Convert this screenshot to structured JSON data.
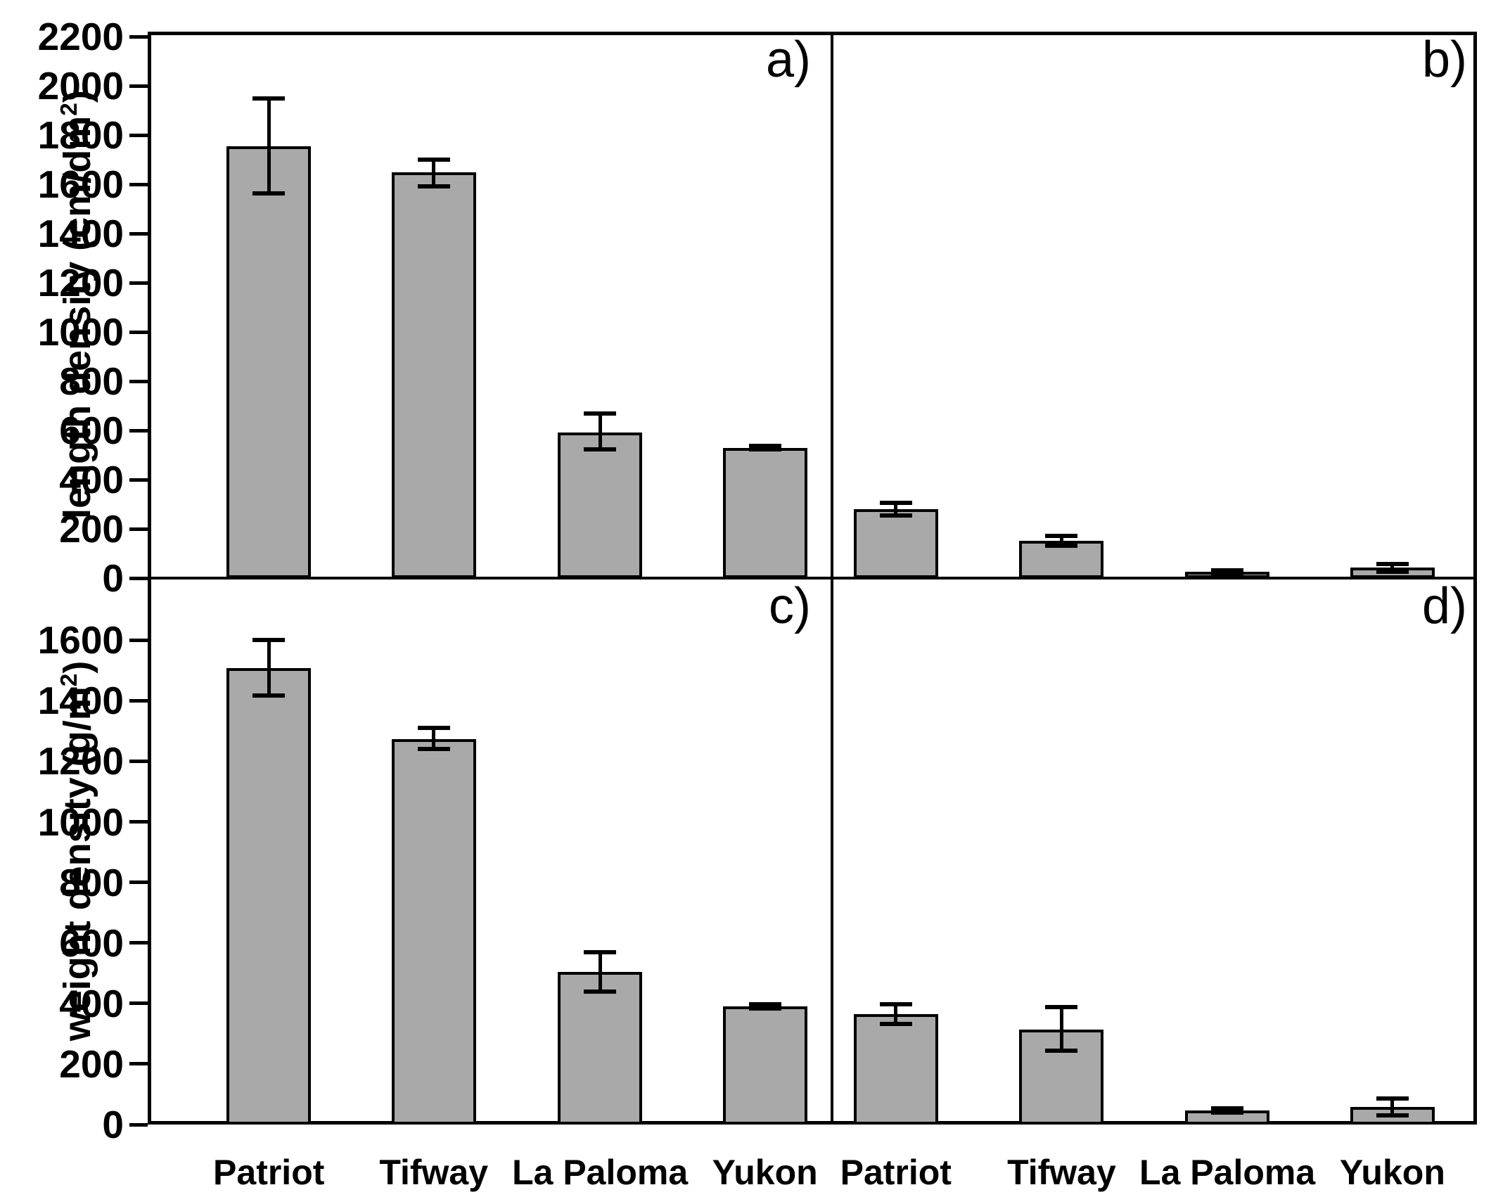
{
  "figure": {
    "background": "#ffffff",
    "bar_fill": "#a9a9a9",
    "line_color": "#000000"
  },
  "chart_data": {
    "type": "bar",
    "categories": [
      "Patriot",
      "Tifway",
      "La Paloma",
      "Yukon"
    ],
    "rows": [
      {
        "ylabel_main": "length density (cm/dm",
        "ylabel_sup": "2",
        "ylabel_end": ")",
        "ylim": [
          0,
          2220
        ],
        "ticks": {
          "max_label": 2200,
          "step": 200
        },
        "grid": false
      },
      {
        "ylabel_main": "weight density (g/m",
        "ylabel_sup": "2",
        "ylabel_end": ")",
        "ylim": [
          0,
          1805
        ],
        "ticks": {
          "max_label": 1600,
          "step": 200
        },
        "grid": false
      }
    ],
    "panels": [
      {
        "label": "a)",
        "row": 0,
        "col": 0,
        "values": [
          1755,
          1648,
          592,
          530
        ],
        "err_lo": [
          1563,
          1592,
          523,
          524
        ],
        "err_hi": [
          1948,
          1700,
          668,
          536
        ]
      },
      {
        "label": "b)",
        "row": 0,
        "col": 1,
        "values": [
          280,
          152,
          25,
          43
        ],
        "err_lo": [
          255,
          132,
          18,
          25
        ],
        "err_hi": [
          305,
          172,
          31,
          58
        ]
      },
      {
        "label": "c)",
        "row": 1,
        "col": 0,
        "values": [
          1507,
          1272,
          503,
          391
        ],
        "err_lo": [
          1418,
          1240,
          438,
          384
        ],
        "err_hi": [
          1600,
          1310,
          570,
          398
        ]
      },
      {
        "label": "d)",
        "row": 1,
        "col": 1,
        "values": [
          364,
          314,
          47,
          58
        ],
        "err_lo": [
          333,
          243,
          40,
          31
        ],
        "err_hi": [
          397,
          389,
          54,
          87
        ]
      }
    ]
  }
}
